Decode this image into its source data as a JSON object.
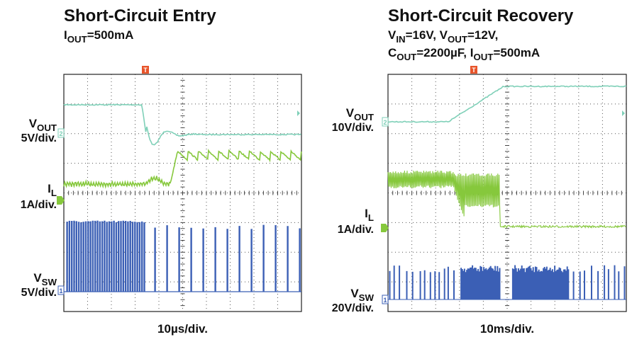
{
  "left": {
    "title": "Short‑Circuit Entry",
    "subtitle": [
      [
        "I",
        "OUT",
        "=500mA"
      ]
    ],
    "vout": [
      "V",
      "OUT"
    ],
    "vout_scale": "5V/div.",
    "il": [
      "I",
      "L"
    ],
    "il_scale": "1A/div.",
    "vsw": [
      "V",
      "SW"
    ],
    "vsw_scale": "5V/div.",
    "time_scale": "10µs/div.",
    "trigger": "T",
    "ch2": "2",
    "ch1": "1"
  },
  "right": {
    "title": "Short‑Circuit Recovery",
    "subtitle": [
      [
        "V",
        "IN",
        "=16V, V",
        "OUT",
        "=12V,"
      ],
      [
        "C",
        "OUT",
        "=2200µF, I",
        "OUT",
        "=500mA"
      ]
    ],
    "vout": [
      "V",
      "OUT"
    ],
    "vout_scale": "10V/div.",
    "il": [
      "I",
      "L"
    ],
    "il_scale": "1A/div.",
    "vsw": [
      "V",
      "SW"
    ],
    "vsw_scale": "20V/div.",
    "time_scale": "10ms/div.",
    "trigger": "T",
    "ch2": "2",
    "ch1": "1"
  }
}
